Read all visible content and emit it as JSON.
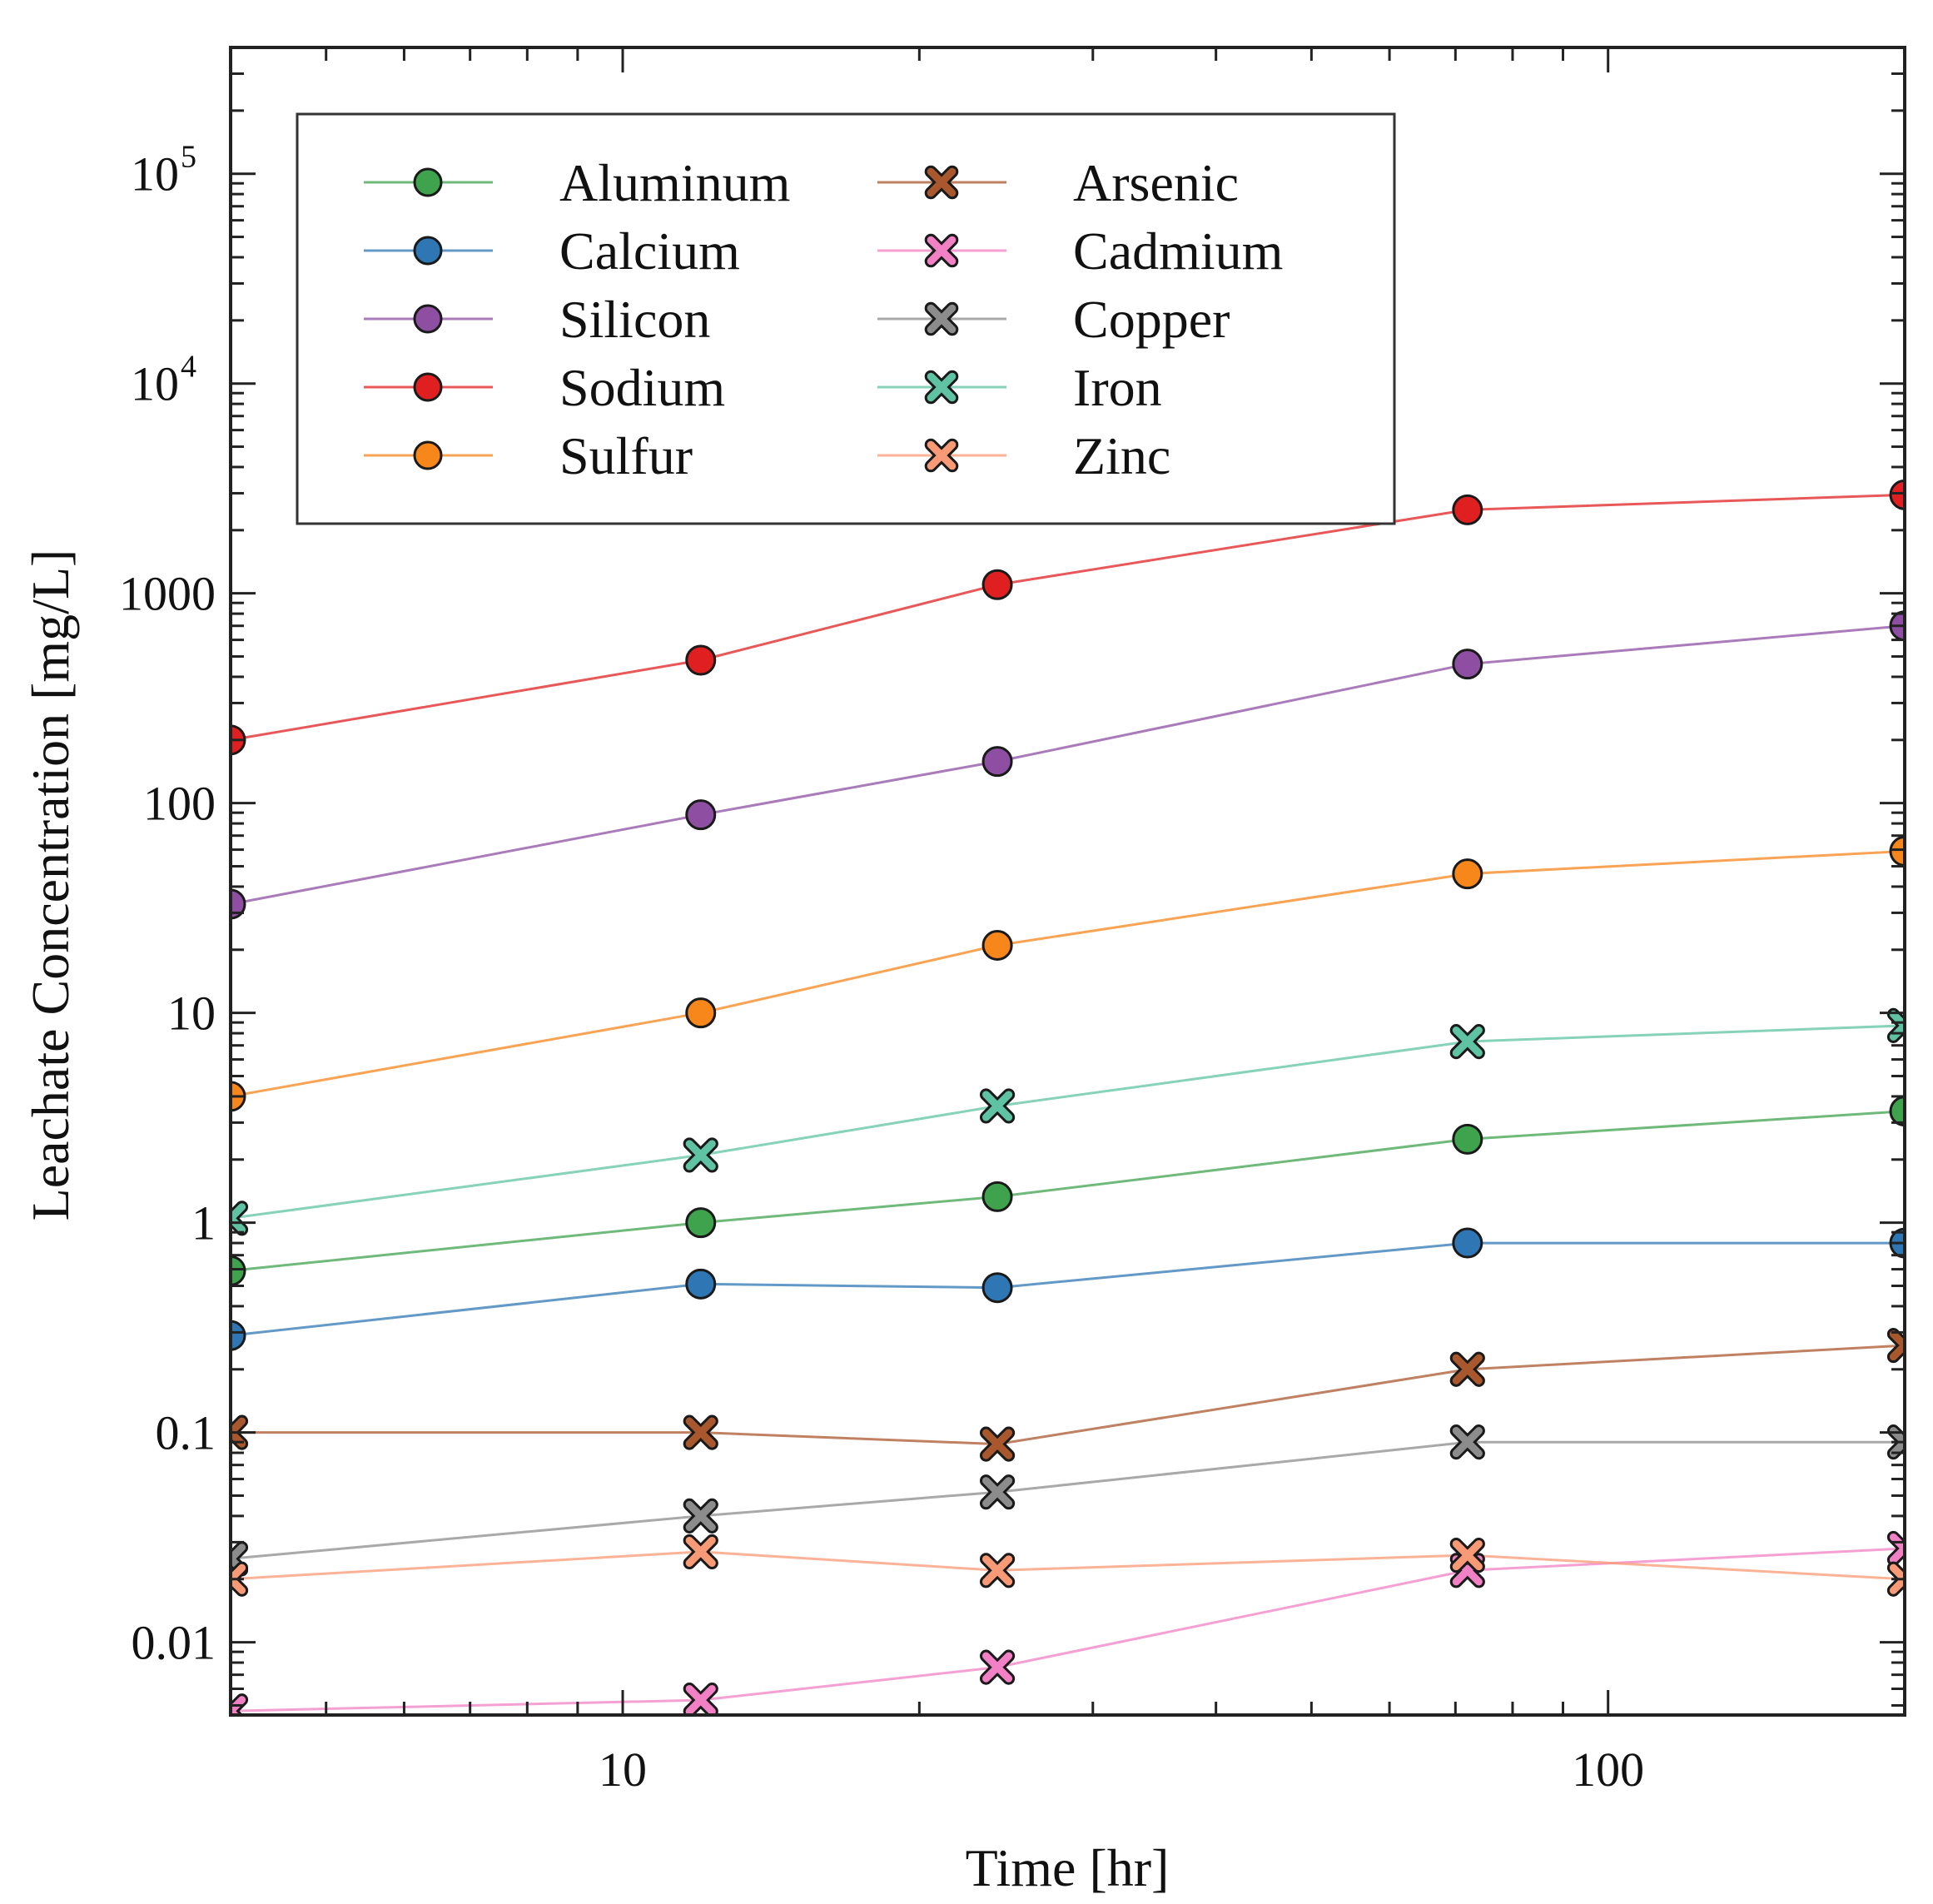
{
  "chart_data": {
    "type": "line",
    "xlabel": "Time [hr]",
    "ylabel": "Leachate Concentration [mg/L]",
    "x_scale": "log",
    "y_scale": "log",
    "xlim": [
      4,
      200
    ],
    "ylim": [
      0.0045,
      400000
    ],
    "x": [
      4,
      12,
      24,
      72,
      200
    ],
    "x_ticks": [
      {
        "value": 10,
        "label": "10"
      },
      {
        "value": 100,
        "label": "100"
      }
    ],
    "y_ticks": [
      {
        "value": 0.01,
        "label": "0.01"
      },
      {
        "value": 0.1,
        "label": "0.1"
      },
      {
        "value": 1,
        "label": "1"
      },
      {
        "value": 10,
        "label": "10"
      },
      {
        "value": 100,
        "label": "100"
      },
      {
        "value": 1000,
        "label": "1000"
      },
      {
        "value": 10000,
        "label": "10",
        "sup": "4"
      },
      {
        "value": 100000,
        "label": "10",
        "sup": "5"
      }
    ],
    "grid": false,
    "legend": {
      "position": "top-left",
      "columns": 2
    },
    "series": [
      {
        "name": "Aluminum",
        "marker": "circle",
        "color": "#3fa34d",
        "values": [
          0.59,
          1.0,
          1.33,
          2.5,
          3.4
        ]
      },
      {
        "name": "Calcium",
        "marker": "circle",
        "color": "#2f77b4",
        "values": [
          0.29,
          0.51,
          0.49,
          0.8,
          0.8
        ]
      },
      {
        "name": "Silicon",
        "marker": "circle",
        "color": "#8e4fa3",
        "values": [
          33,
          88,
          158,
          460,
          700
        ]
      },
      {
        "name": "Sodium",
        "marker": "circle",
        "color": "#e02020",
        "values": [
          200,
          480,
          1100,
          2500,
          2950
        ]
      },
      {
        "name": "Sulfur",
        "marker": "circle",
        "color": "#f7861b",
        "values": [
          4.0,
          10,
          21,
          46,
          59
        ]
      },
      {
        "name": "Arsenic",
        "marker": "x",
        "color": "#a9572d",
        "values": [
          0.1,
          0.1,
          0.088,
          0.2,
          0.26
        ]
      },
      {
        "name": "Cadmium",
        "marker": "x",
        "color": "#f280c4",
        "values": [
          0.0047,
          0.0053,
          0.0076,
          0.022,
          0.028
        ]
      },
      {
        "name": "Copper",
        "marker": "x",
        "color": "#8c8c8c",
        "values": [
          0.025,
          0.04,
          0.052,
          0.09,
          0.09
        ]
      },
      {
        "name": "Iron",
        "marker": "x",
        "color": "#5fc3a3",
        "values": [
          1.05,
          2.1,
          3.6,
          7.3,
          8.7
        ]
      },
      {
        "name": "Zinc",
        "marker": "x",
        "color": "#f99a76",
        "values": [
          0.02,
          0.027,
          0.022,
          0.026,
          0.02
        ]
      }
    ]
  }
}
